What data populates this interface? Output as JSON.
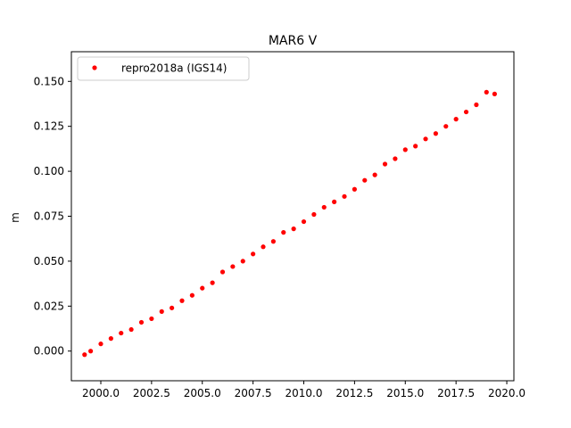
{
  "chart_data": {
    "type": "scatter",
    "title": "MAR6 V",
    "xlabel": "",
    "ylabel": "m",
    "xlim": [
      1998.55,
      2020.35
    ],
    "ylim": [
      -0.0165,
      0.1665
    ],
    "x_ticks": [
      "2000.0",
      "2002.5",
      "2005.0",
      "2007.5",
      "2010.0",
      "2012.5",
      "2015.0",
      "2017.5",
      "2020.0"
    ],
    "y_ticks": [
      "0.000",
      "0.025",
      "0.050",
      "0.075",
      "0.100",
      "0.125",
      "0.150"
    ],
    "grid": false,
    "legend_position": "top-left",
    "series": [
      {
        "name": "repro2018a (IGS14)",
        "color": "#ff0000",
        "marker": "circle",
        "x": [
          1999.2,
          1999.5,
          2000.0,
          2000.5,
          2001.0,
          2001.5,
          2002.0,
          2002.5,
          2003.0,
          2003.5,
          2004.0,
          2004.5,
          2005.0,
          2005.5,
          2006.0,
          2006.5,
          2007.0,
          2007.5,
          2008.0,
          2008.5,
          2009.0,
          2009.5,
          2010.0,
          2010.5,
          2011.0,
          2011.5,
          2012.0,
          2012.5,
          2013.0,
          2013.5,
          2014.0,
          2014.5,
          2015.0,
          2015.5,
          2016.0,
          2016.5,
          2017.0,
          2017.5,
          2018.0,
          2018.5,
          2019.0,
          2019.4
        ],
        "y": [
          -0.002,
          0.0,
          0.004,
          0.007,
          0.01,
          0.012,
          0.016,
          0.018,
          0.022,
          0.024,
          0.028,
          0.031,
          0.035,
          0.038,
          0.044,
          0.047,
          0.05,
          0.054,
          0.058,
          0.061,
          0.066,
          0.068,
          0.072,
          0.076,
          0.08,
          0.083,
          0.086,
          0.09,
          0.095,
          0.098,
          0.104,
          0.107,
          0.112,
          0.114,
          0.118,
          0.121,
          0.125,
          0.129,
          0.133,
          0.137,
          0.144,
          0.143
        ]
      }
    ]
  }
}
